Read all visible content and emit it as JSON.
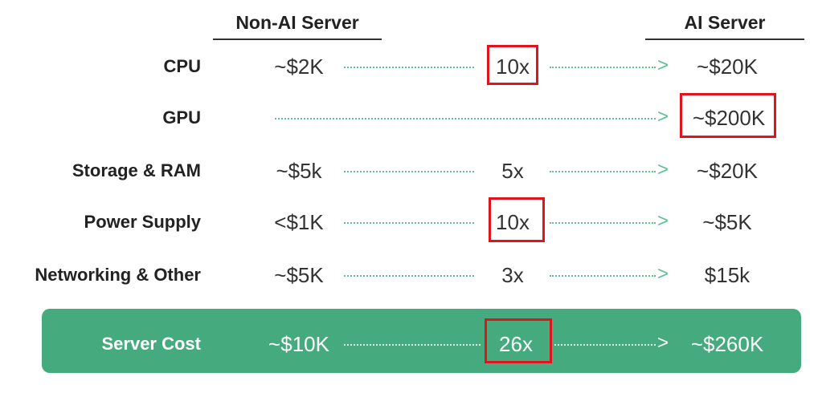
{
  "headers": {
    "non_ai": "Non-AI Server",
    "ai": "AI Server"
  },
  "rows": [
    {
      "label": "CPU",
      "non_ai": "~$2K",
      "multiplier": "10x",
      "ai": "~$20K"
    },
    {
      "label": "GPU",
      "non_ai": "",
      "multiplier": "",
      "ai": "~$200K"
    },
    {
      "label": "Storage & RAM",
      "non_ai": "~$5k",
      "multiplier": "5x",
      "ai": "~$20K"
    },
    {
      "label": "Power Supply",
      "non_ai": "<$1K",
      "multiplier": "10x",
      "ai": "~$5K"
    },
    {
      "label": "Networking & Other",
      "non_ai": "~$5K",
      "multiplier": "3x",
      "ai": "$15k"
    }
  ],
  "total": {
    "label": "Server Cost",
    "non_ai": "~$10K",
    "multiplier": "26x",
    "ai": "~$260K"
  },
  "arrow_glyph": ">",
  "colors": {
    "accent_green": "#45ab7f",
    "dotted_green": "#5fbf95",
    "highlight_red": "#e0141c"
  }
}
